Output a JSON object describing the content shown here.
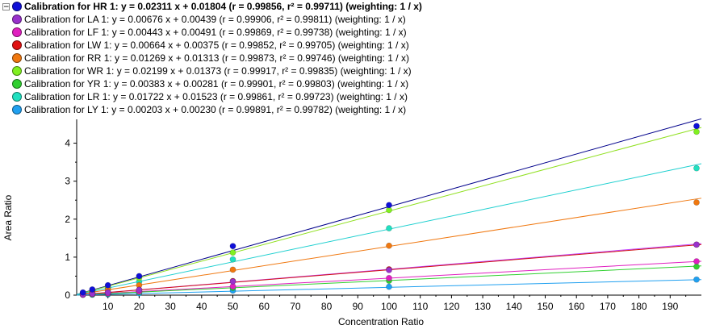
{
  "chart_data": {
    "type": "scatter",
    "xlabel": "Concentration Ratio",
    "ylabel": "Area Ratio",
    "xlim": [
      0,
      200
    ],
    "ylim": [
      0,
      4.5
    ],
    "x_ticks": [
      10,
      20,
      30,
      40,
      50,
      60,
      70,
      80,
      90,
      100,
      110,
      120,
      130,
      140,
      150,
      160,
      170,
      180,
      190
    ],
    "y_ticks": [
      0,
      1,
      2,
      3,
      4
    ],
    "x_tick_labels": [
      "10",
      "20",
      "30",
      "40",
      "50",
      "60",
      "70",
      "80",
      "90",
      "100",
      "110",
      "120",
      "130",
      "140",
      "150",
      "160",
      "170",
      "180",
      "190"
    ],
    "y_tick_labels": [
      "0",
      "1",
      "2",
      "3",
      "4"
    ],
    "grid": false,
    "legend_position": "top-left",
    "x": [
      2,
      5,
      10,
      20,
      50,
      100,
      200
    ],
    "series": [
      {
        "name": "HR",
        "legend_text": "Calibration for HR  1: y = 0.02311 x + 0.01804 (r = 0.99856, r² = 0.99711)  (weighting: 1 / x)",
        "bold": true,
        "slope": 0.02311,
        "intercept": 0.01804,
        "color": "#1010d8",
        "line_color": "#00008b",
        "values": [
          0.07,
          0.15,
          0.26,
          0.5,
          1.29,
          2.37,
          4.45
        ]
      },
      {
        "name": "LA",
        "legend_text": "Calibration for LA 1: y = 0.00676 x + 0.00439 (r = 0.99906, r² = 0.99811)  (weighting: 1 / x)",
        "bold": false,
        "slope": 0.00676,
        "intercept": 0.00439,
        "color": "#9932cc",
        "line_color": "#c040ff",
        "values": [
          0.02,
          0.04,
          0.07,
          0.14,
          0.36,
          0.66,
          1.33
        ]
      },
      {
        "name": "LF",
        "legend_text": "Calibration for LF 1: y = 0.00443 x + 0.00491 (r = 0.99869, r² = 0.99738)  (weighting: 1 / x)",
        "bold": false,
        "slope": 0.00443,
        "intercept": 0.00491,
        "color": "#e020c0",
        "line_color": "#e020c0",
        "values": [
          0.01,
          0.03,
          0.05,
          0.1,
          0.23,
          0.45,
          0.89
        ]
      },
      {
        "name": "LW",
        "legend_text": "Calibration for LW 1: y = 0.00664 x + 0.00375 (r = 0.99852, r² = 0.99705)  (weighting: 1 / x)",
        "bold": false,
        "slope": 0.00664,
        "intercept": 0.00375,
        "color": "#e01010",
        "line_color": "#d01010",
        "values": [
          0.02,
          0.04,
          0.07,
          0.14,
          0.37,
          0.68,
          1.33
        ]
      },
      {
        "name": "RR",
        "legend_text": "Calibration for RR 1: y = 0.01269 x + 0.01313 (r = 0.99873, r² = 0.99746)  (weighting: 1 / x)",
        "bold": false,
        "slope": 0.01269,
        "intercept": 0.01313,
        "color": "#f07810",
        "line_color": "#f07810",
        "values": [
          0.04,
          0.08,
          0.14,
          0.26,
          0.67,
          1.3,
          2.44
        ]
      },
      {
        "name": "WR",
        "legend_text": "Calibration for WR 1: y = 0.02199 x + 0.01373 (r = 0.99917, r² = 0.99835)  (weighting: 1 / x)",
        "bold": false,
        "slope": 0.02199,
        "intercept": 0.01373,
        "color": "#80f020",
        "line_color": "#90e020",
        "values": [
          0.06,
          0.12,
          0.23,
          0.45,
          1.12,
          2.24,
          4.3
        ]
      },
      {
        "name": "YR",
        "legend_text": "Calibration for YR 1: y = 0.00383 x + 0.00281 (r = 0.99901, r² = 0.99803)  (weighting: 1 / x)",
        "bold": false,
        "slope": 0.00383,
        "intercept": 0.00281,
        "color": "#30d030",
        "line_color": "#30d030",
        "values": [
          0.01,
          0.02,
          0.04,
          0.08,
          0.19,
          0.38,
          0.75
        ]
      },
      {
        "name": "LR",
        "legend_text": "Calibration for LR 1: y = 0.01722 x + 0.01523 (r = 0.99861, r² = 0.99723)  (weighting: 1 / x)",
        "bold": false,
        "slope": 0.01722,
        "intercept": 0.01523,
        "color": "#20e0c0",
        "line_color": "#20d0d0",
        "values": [
          0.05,
          0.1,
          0.18,
          0.35,
          0.94,
          1.76,
          3.34
        ]
      },
      {
        "name": "LY",
        "legend_text": "Calibration for LY 1: y = 0.00203 x + 0.00230 (r = 0.99891, r² = 0.99782)  (weighting: 1 / x)",
        "bold": false,
        "slope": 0.00203,
        "intercept": 0.0023,
        "color": "#20a0f0",
        "line_color": "#20a0f0",
        "values": [
          0.01,
          0.01,
          0.02,
          0.05,
          0.12,
          0.22,
          0.41
        ]
      }
    ]
  },
  "legend_collapse_glyph": "−"
}
